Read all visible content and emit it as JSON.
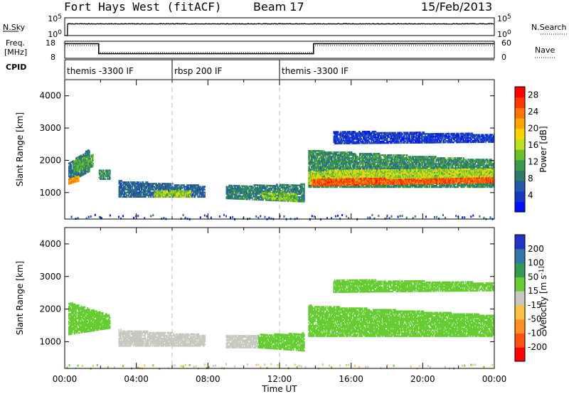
{
  "header": {
    "station": "Fort Hays West (fitACF)",
    "beam": "Beam 17",
    "date": "15/Feb/2013"
  },
  "panels": {
    "noise": {
      "left_label": "N.Sky",
      "right_label": "N.Search",
      "left_ticks": [
        "10^5",
        "10^0"
      ],
      "right_ticks": [
        "10^5",
        "10^0"
      ]
    },
    "freq": {
      "left_label_line1": "Freq.",
      "left_label_line2": "[MHz]",
      "left_ticks": [
        "18",
        "8"
      ],
      "right_label": "Nave",
      "right_ticks": [
        "60",
        "0"
      ]
    },
    "cpid": {
      "label": "CPID",
      "segments": [
        {
          "start_h": 0,
          "end_h": 6,
          "text": "themis -3300 IF"
        },
        {
          "start_h": 6,
          "end_h": 12,
          "text": "rbsp 200 IF"
        },
        {
          "start_h": 12,
          "end_h": 24,
          "text": "themis -3300 IF"
        }
      ]
    }
  },
  "chart_data": [
    {
      "type": "line",
      "name": "noise",
      "x_range_h": [
        0,
        24
      ],
      "ylim_log10": [
        0,
        5
      ],
      "series": [
        {
          "name": "N.Sky",
          "style": "solid",
          "x": [
            0,
            0.15,
            0.16,
            24
          ],
          "y": [
            0,
            0,
            3.3,
            3.3
          ]
        },
        {
          "name": "N.Search",
          "style": "dotted",
          "x": [
            0,
            0.15,
            0.16,
            24
          ],
          "y": [
            0,
            0,
            3.2,
            3.2
          ]
        }
      ]
    },
    {
      "type": "line",
      "name": "frequency and nave",
      "x_range_h": [
        0,
        24
      ],
      "ylim": [
        8,
        18
      ],
      "y2lim": [
        0,
        60
      ],
      "series": [
        {
          "name": "Freq.",
          "style": "solid",
          "x": [
            0,
            1.9,
            1.9,
            13.9,
            13.9,
            24
          ],
          "y": [
            16.6,
            16.6,
            10.7,
            10.7,
            16.6,
            16.6
          ]
        },
        {
          "name": "Nave",
          "style": "dotted",
          "axis": "right",
          "x": [
            0,
            1.9,
            1.9,
            13.9,
            13.9,
            24
          ],
          "y": [
            45,
            45,
            20,
            20,
            45,
            45
          ]
        }
      ]
    },
    {
      "type": "heatmap",
      "name": "power",
      "x_range_h": [
        0,
        24
      ],
      "ylabel": "Slant Range [km]",
      "ylim": [
        180,
        4500
      ],
      "yticks": [
        1000,
        2000,
        3000,
        4000
      ],
      "colorbar": {
        "label": "Power [dB]",
        "ticks": [
          "4",
          "8",
          "12",
          "16",
          "20",
          "24",
          "28"
        ],
        "colors": [
          "#0010ff",
          "#1737c8",
          "#2458a8",
          "#2f7a6a",
          "#3b9b4d",
          "#6cbf2a",
          "#bfe020",
          "#ffd200",
          "#ffa500",
          "#ff7400",
          "#ff3800",
          "#ff0000"
        ]
      },
      "echo_regions": [
        {
          "t0": 0.2,
          "t1": 1.4,
          "r_start": [
            1300,
            1900
          ],
          "r_end": [
            1650,
            2350
          ],
          "level": 10
        },
        {
          "t0": 0.2,
          "t1": 0.8,
          "r_start": [
            1250,
            1400
          ],
          "r_end": [
            1350,
            1500
          ],
          "level": 24
        },
        {
          "t0": 0.5,
          "t1": 1.6,
          "r_start": [
            1600,
            2000
          ],
          "r_end": [
            1800,
            2200
          ],
          "level": 14
        },
        {
          "t0": 1.9,
          "t1": 2.5,
          "r_start": [
            1400,
            1700
          ],
          "r_end": [
            1400,
            1700
          ],
          "level": 12
        },
        {
          "t0": 3.0,
          "t1": 7.8,
          "r_start": [
            850,
            1350
          ],
          "r_end": [
            850,
            1200
          ],
          "level": 9
        },
        {
          "t0": 5.0,
          "t1": 7.0,
          "r_start": [
            850,
            1050
          ],
          "r_end": [
            850,
            1050
          ],
          "level": 17
        },
        {
          "t0": 9.0,
          "t1": 13.4,
          "r_start": [
            800,
            1200
          ],
          "r_end": [
            700,
            1250
          ],
          "level": 11
        },
        {
          "t0": 11.0,
          "t1": 13.0,
          "r_start": [
            800,
            1000
          ],
          "r_end": [
            700,
            950
          ],
          "level": 16
        },
        {
          "t0": 13.6,
          "t1": 24.0,
          "r_start": [
            1150,
            2300
          ],
          "r_end": [
            1150,
            2000
          ],
          "level": 12
        },
        {
          "t0": 13.6,
          "t1": 24.0,
          "r_start": [
            1250,
            1650
          ],
          "r_end": [
            1300,
            1750
          ],
          "level": 18
        },
        {
          "t0": 13.8,
          "t1": 24.0,
          "r_start": [
            1200,
            1400
          ],
          "r_end": [
            1300,
            1450
          ],
          "level": 27
        },
        {
          "t0": 15.0,
          "t1": 24.0,
          "r_start": [
            2500,
            2900
          ],
          "r_end": [
            2550,
            2800
          ],
          "level": 6
        }
      ]
    },
    {
      "type": "heatmap",
      "name": "velocity",
      "x_range_h": [
        0,
        24
      ],
      "ylabel": "Slant Range [km]",
      "ylim": [
        180,
        4500
      ],
      "yticks": [
        1000,
        2000,
        3000,
        4000
      ],
      "xlabel": "Time UT",
      "xticks": [
        "00:00",
        "04:00",
        "08:00",
        "12:00",
        "16:00",
        "20:00",
        "00:00"
      ],
      "colorbar": {
        "label": "Velocity [m s^-1]",
        "ticks": [
          "200",
          "100",
          "50",
          "15",
          "-15",
          "-50",
          "-100",
          "-200"
        ],
        "colors": [
          "#2233cc",
          "#3377aa",
          "#339955",
          "#66cc33",
          "#c8c8c0",
          "#ffc040",
          "#ff9020",
          "#ff5010",
          "#ff0000"
        ]
      },
      "echo_regions": [
        {
          "t0": 0.2,
          "t1": 2.5,
          "r_start": [
            1200,
            2200
          ],
          "r_end": [
            1400,
            1800
          ],
          "velocity": 0
        },
        {
          "t0": 3.0,
          "t1": 7.8,
          "r_start": [
            850,
            1350
          ],
          "r_end": [
            850,
            1200
          ],
          "velocity": -40
        },
        {
          "t0": 9.0,
          "t1": 10.8,
          "r_start": [
            800,
            1200
          ],
          "r_end": [
            800,
            1200
          ],
          "velocity": -35
        },
        {
          "t0": 10.8,
          "t1": 13.4,
          "r_start": [
            800,
            1200
          ],
          "r_end": [
            700,
            1250
          ],
          "velocity": 0
        },
        {
          "t0": 13.6,
          "t1": 24.0,
          "r_start": [
            1150,
            2100
          ],
          "r_end": [
            1150,
            1800
          ],
          "velocity": 0
        },
        {
          "t0": 15.0,
          "t1": 24.0,
          "r_start": [
            2500,
            2900
          ],
          "r_end": [
            2550,
            2800
          ],
          "velocity": 0
        }
      ]
    }
  ]
}
